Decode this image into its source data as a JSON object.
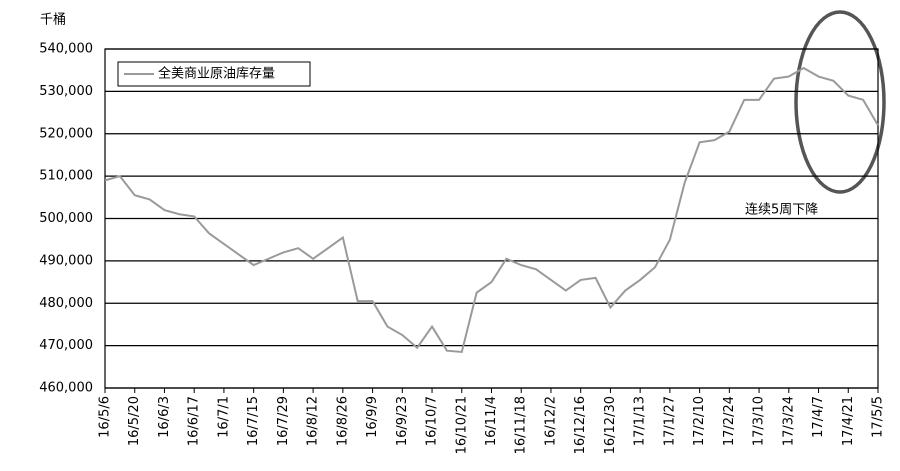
{
  "chart_data": {
    "type": "line",
    "y_label": "千桶",
    "annotation": "连续5周下降",
    "categories": [
      "16/5/6",
      null,
      "16/5/20",
      null,
      "16/6/3",
      null,
      "16/6/17",
      null,
      "16/7/1",
      null,
      "16/7/15",
      null,
      "16/7/29",
      null,
      "16/8/12",
      null,
      "16/8/26",
      null,
      "16/9/9",
      null,
      "16/9/23",
      null,
      "16/10/7",
      null,
      "16/10/21",
      null,
      "16/11/4",
      null,
      "16/11/18",
      null,
      "16/12/2",
      null,
      "16/12/16",
      null,
      "16/12/30",
      null,
      "17/1/13",
      null,
      "17/1/27",
      null,
      "17/2/10",
      null,
      "17/2/24",
      null,
      "17/3/10",
      null,
      "17/3/24",
      null,
      "17/4/7",
      null,
      "17/4/21",
      null,
      "17/5/5"
    ],
    "series": [
      {
        "name": "全美商业原油库存量",
        "color": "#9a9a9a",
        "values": [
          509000,
          510000,
          505500,
          504500,
          502000,
          501000,
          500500,
          496500,
          494000,
          491500,
          489000,
          490500,
          492000,
          493000,
          490500,
          493000,
          495500,
          480500,
          480500,
          474500,
          472500,
          469500,
          474500,
          468800,
          468500,
          482500,
          485000,
          490500,
          489000,
          488000,
          485500,
          483000,
          485500,
          486000,
          479000,
          483000,
          485500,
          488500,
          495000,
          508500,
          518000,
          518500,
          520500,
          528000,
          528000,
          533000,
          533500,
          535500,
          533500,
          532500,
          529000,
          528000,
          522000
        ]
      }
    ],
    "ylim": [
      460000,
      540000
    ],
    "yticks": [
      {
        "value": 460000,
        "label": "460,000"
      },
      {
        "value": 470000,
        "label": "470,000"
      },
      {
        "value": 480000,
        "label": "480,000"
      },
      {
        "value": 490000,
        "label": "490,000"
      },
      {
        "value": 500000,
        "label": "500,000"
      },
      {
        "value": 510000,
        "label": "510,000"
      },
      {
        "value": 520000,
        "label": "520,000"
      },
      {
        "value": 530000,
        "label": "530,000"
      },
      {
        "value": 540000,
        "label": "540,000"
      }
    ],
    "grid": true,
    "legend": "upper left"
  }
}
